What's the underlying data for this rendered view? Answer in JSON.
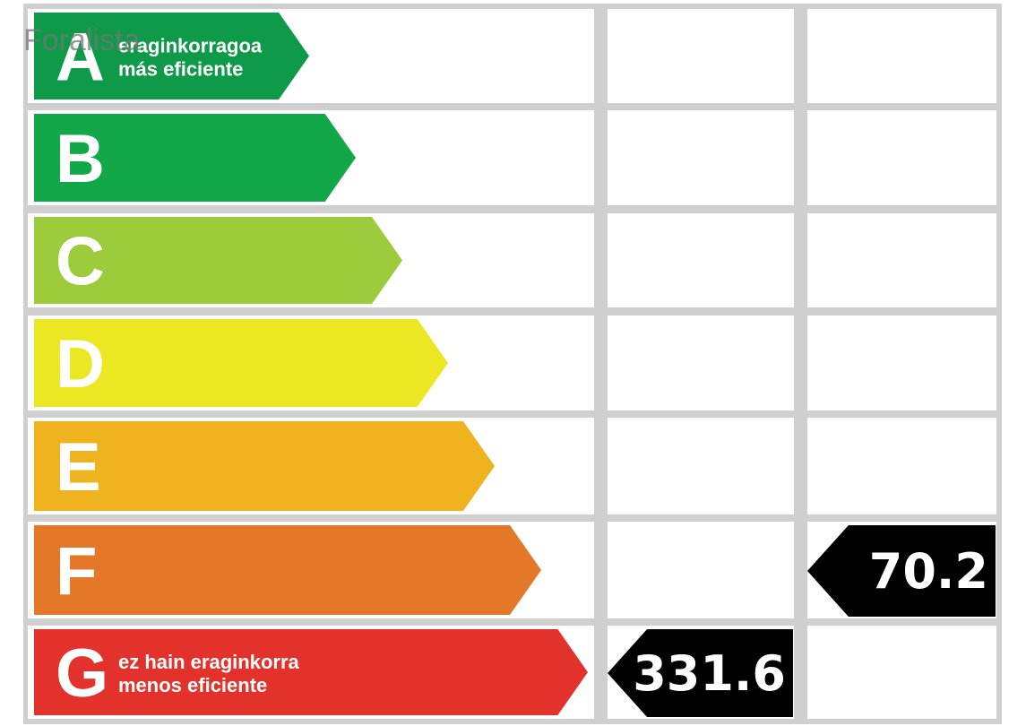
{
  "watermark": "Foralista",
  "rows": [
    {
      "letter": "A",
      "line1": "eraginkorragoa",
      "line2": "más eficiente",
      "color": "#0e9a49"
    },
    {
      "letter": "B",
      "color": "#12a84a"
    },
    {
      "letter": "C",
      "color": "#9ccb3b"
    },
    {
      "letter": "D",
      "color": "#ebe823"
    },
    {
      "letter": "E",
      "color": "#efb31f"
    },
    {
      "letter": "F",
      "color": "#e27828",
      "emissions": 70.2
    },
    {
      "letter": "G",
      "line1": "ez hain eraginkorra",
      "line2": "menos eficiente",
      "color": "#e2322b",
      "consumption": 331.6
    }
  ]
}
